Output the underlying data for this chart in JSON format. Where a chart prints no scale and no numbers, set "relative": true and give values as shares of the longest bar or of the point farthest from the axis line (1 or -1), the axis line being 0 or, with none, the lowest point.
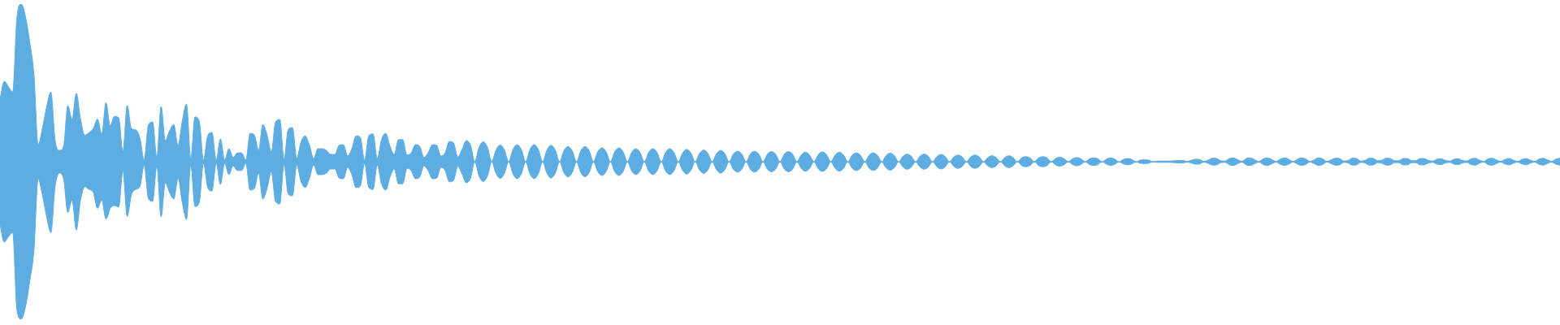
{
  "chart_data": {
    "type": "area",
    "relative": true,
    "marker": "none",
    "ref_lines": [
      {
        "axis": "y",
        "value": 0,
        "color": "#5dade2"
      }
    ],
    "categories": [
      null,
      null,
      null,
      null,
      null,
      null,
      null,
      null,
      null,
      null,
      null,
      null,
      null,
      null,
      null,
      null,
      null,
      null,
      null,
      null,
      null,
      null,
      null,
      null,
      null,
      null,
      null,
      null,
      null,
      null,
      null,
      null,
      null,
      null,
      null,
      null,
      null,
      null,
      null,
      null,
      null,
      null,
      null,
      null,
      null,
      null,
      null,
      null,
      null,
      null,
      null,
      null,
      null,
      null,
      null,
      null,
      null,
      null,
      null,
      null,
      null,
      null,
      null,
      null,
      null,
      null,
      null,
      null,
      null,
      null,
      null,
      null,
      null,
      null,
      null,
      null,
      null,
      null,
      null,
      null,
      null,
      null,
      null,
      null,
      null,
      null,
      null,
      null,
      null,
      null,
      null,
      null,
      null,
      null,
      null,
      null,
      null,
      null,
      null,
      null,
      null,
      null,
      null,
      null,
      null,
      null,
      null,
      null,
      null,
      null,
      null,
      null,
      null,
      null,
      null,
      null,
      null,
      null,
      null,
      null,
      null,
      null,
      null,
      null,
      null,
      null,
      null,
      null,
      null,
      null,
      null,
      null,
      null,
      null,
      null,
      null,
      null,
      null,
      null,
      null,
      null,
      null,
      null,
      null,
      null,
      null,
      null,
      null,
      null,
      null,
      null,
      null,
      null,
      null,
      null,
      null,
      null,
      null,
      null,
      null,
      null,
      null,
      null,
      null,
      null,
      null,
      null,
      null,
      null,
      null,
      null,
      null,
      null,
      null,
      null,
      null,
      null,
      null,
      null,
      null,
      null,
      null,
      null,
      null,
      null,
      null,
      null,
      null,
      null,
      null,
      null,
      null,
      null,
      null,
      null,
      null,
      null,
      null,
      null,
      null,
      null,
      null,
      null,
      null,
      null,
      null,
      null,
      null,
      null,
      null,
      null,
      null,
      null,
      null,
      null,
      null,
      null,
      null,
      null,
      null,
      null,
      null,
      null,
      null,
      null,
      null,
      null,
      null,
      null,
      null,
      null,
      null,
      null,
      null,
      null,
      null,
      null,
      null,
      null,
      null,
      null,
      null,
      null,
      null,
      null,
      null,
      null,
      null,
      null,
      null,
      null,
      null,
      null,
      null,
      null,
      null,
      null,
      null,
      null,
      null,
      null,
      null,
      null,
      null,
      null,
      null,
      null,
      null,
      null,
      null,
      null,
      null,
      null,
      null,
      null,
      null,
      null,
      null,
      null,
      null,
      null,
      null,
      null,
      null,
      null,
      null,
      null,
      null,
      null,
      null,
      null,
      null,
      null,
      null,
      null,
      null,
      null,
      null,
      null,
      null,
      null,
      null,
      null,
      null,
      null,
      null,
      null,
      null,
      null,
      null,
      null,
      null,
      null,
      null,
      null,
      null,
      null,
      null,
      null,
      null,
      null,
      null,
      null,
      null,
      null,
      null,
      null,
      null,
      null,
      null,
      null,
      null,
      null,
      null,
      null,
      null,
      null,
      null,
      null,
      null,
      null,
      null,
      null,
      null,
      null,
      null,
      null,
      null,
      null,
      null,
      null,
      null,
      null,
      null,
      null,
      null,
      null,
      null,
      null,
      null,
      null,
      null,
      null,
      null,
      null,
      null,
      null,
      null,
      null
    ],
    "series": [
      {
        "color": "#5dade2",
        "values": [
          0.398,
          0.51,
          0.476,
          0.442,
          0.914,
          1,
          0.922,
          0.76,
          0.554,
          0.108,
          0.21,
          0.348,
          0.442,
          0.134,
          0.072,
          0.098,
          0.356,
          0.27,
          0.434,
          0.27,
          0.168,
          0.184,
          0.21,
          0.27,
          0.176,
          0.374,
          0.228,
          0.288,
          0.278,
          0.064,
          0.356,
          0.21,
          0.202,
          0.15,
          0.012,
          0.232,
          0.252,
          0.026,
          0.35,
          0.134,
          0.196,
          0.236,
          0.104,
          0.258,
          0.366,
          0.02,
          0.284,
          0.258,
          0.01,
          0.164,
          0.186,
          0.01,
          0.144,
          0.01,
          0.082,
          0.026,
          0.056,
          0.056,
          0.01,
          0.18,
          0.17,
          0.072,
          0.236,
          0.17,
          0.062,
          0.252,
          0.268,
          0.016,
          0.206,
          0.216,
          0.02,
          0.124,
          0.164,
          0.104,
          0.02,
          0.082,
          0.082,
          0.072,
          0.046,
          0.046,
          0.104,
          0.108,
          0.036,
          0.082,
          0.164,
          0.154,
          0.01,
          0.164,
          0.176,
          0.02,
          0.14,
          0.18,
          0.098,
          0.046,
          0.14,
          0.14,
          0.042,
          0.056,
          0.108,
          0.098,
          0.026,
          0.056,
          0.108,
          0.104,
          0.036,
          0.056,
          0.128,
          0.118,
          0.03,
          0.078,
          0.134,
          0.104,
          0,
          0.09,
          0.126,
          0.09,
          0,
          0.074,
          0.106,
          0.074,
          0,
          0.076,
          0.108,
          0.076,
          0,
          0.076,
          0.108,
          0.076,
          0,
          0.072,
          0.104,
          0.072,
          0,
          0.068,
          0.096,
          0.068,
          0,
          0.068,
          0.096,
          0.068,
          0,
          0.062,
          0.088,
          0.062,
          0,
          0.062,
          0.088,
          0.062,
          0,
          0.058,
          0.082,
          0.058,
          0,
          0.058,
          0.082,
          0.058,
          0,
          0.058,
          0.082,
          0.058,
          0,
          0.054,
          0.078,
          0.054,
          0,
          0.052,
          0.074,
          0.052,
          0,
          0.05,
          0.072,
          0.05,
          0,
          0.048,
          0.066,
          0.048,
          0,
          0.048,
          0.066,
          0.048,
          0,
          0.046,
          0.064,
          0.046,
          0,
          0.046,
          0.064,
          0.046,
          0,
          0.042,
          0.06,
          0.042,
          0,
          0.044,
          0.062,
          0.044,
          0,
          0.042,
          0.06,
          0.042,
          0,
          0.04,
          0.056,
          0.04,
          0,
          0.04,
          0.056,
          0.04,
          0,
          0.038,
          0.054,
          0.038,
          0,
          0.034,
          0.048,
          0.034,
          0,
          0.034,
          0.048,
          0.034,
          0,
          0.032,
          0.046,
          0.032,
          0,
          0.03,
          0.042,
          0.03,
          0,
          0.03,
          0.042,
          0.03,
          0,
          0.026,
          0.038,
          0.026,
          0,
          0.026,
          0.038,
          0.026,
          0,
          0.024,
          0.032,
          0.024,
          0,
          0.024,
          0.032,
          0.024,
          0,
          0.02,
          0.028,
          0.02,
          0,
          0.018,
          0.026,
          0.018,
          0,
          0.018,
          0.024,
          0.018,
          0,
          0.016,
          0.024,
          0.016,
          0,
          0.014,
          0.02,
          0.014,
          0,
          0.01,
          0.012,
          0.01,
          0,
          0.004,
          0.004,
          0.004,
          0.004,
          0.006,
          0.008,
          0.008,
          0.002,
          0.008,
          0.016,
          0.014,
          0.002,
          0.01,
          0.022,
          0.02,
          0.006,
          0.004,
          0.02,
          0.024,
          0.012,
          0.002,
          0.02,
          0.024,
          0.012,
          0.002,
          0.018,
          0.024,
          0.014,
          0.002,
          0.016,
          0.024,
          0.016,
          0.002,
          0.014,
          0.024,
          0.018,
          0.002,
          0.012,
          0.024,
          0.018,
          0.002,
          0.012,
          0.022,
          0.02,
          0.004,
          0.008,
          0.022,
          0.02,
          0.004,
          0.008,
          0.022,
          0.02,
          0.006,
          0.01,
          0.022,
          0.02,
          0.006,
          0.006,
          0.02,
          0.02,
          0.006,
          0.006,
          0.02,
          0.02,
          0.008,
          0.004,
          0.016,
          0.018,
          0.008,
          0.004,
          0.016,
          0.018,
          0.008,
          0.004,
          0.018,
          0.022,
          0.01,
          0.002,
          0.018,
          0.022,
          0.012,
          0.002,
          0.014,
          0.02,
          0.01,
          0.002,
          0.014,
          0.02,
          0.01,
          0.002,
          0.016,
          0.022,
          0.012,
          0.002,
          0.016,
          0.022
        ]
      },
      {
        "color": "#5dade2",
        "values": [
          -0.4,
          -0.51,
          -0.476,
          -0.45,
          -0.94,
          -1,
          -0.922,
          -0.76,
          -0.562,
          -0.108,
          -0.21,
          -0.348,
          -0.45,
          -0.158,
          -0.072,
          -0.108,
          -0.322,
          -0.244,
          -0.434,
          -0.244,
          -0.158,
          -0.176,
          -0.194,
          -0.296,
          -0.244,
          -0.364,
          -0.296,
          -0.278,
          -0.288,
          -0.056,
          -0.348,
          -0.21,
          -0.176,
          -0.158,
          -0.022,
          -0.232,
          -0.252,
          -0.026,
          -0.35,
          -0.134,
          -0.196,
          -0.236,
          -0.104,
          -0.258,
          -0.366,
          -0.02,
          -0.284,
          -0.258,
          -0.01,
          -0.164,
          -0.186,
          -0.01,
          -0.144,
          -0.01,
          -0.082,
          -0.026,
          -0.056,
          -0.056,
          -0.01,
          -0.18,
          -0.17,
          -0.072,
          -0.236,
          -0.17,
          -0.062,
          -0.252,
          -0.268,
          -0.016,
          -0.206,
          -0.216,
          -0.02,
          -0.124,
          -0.164,
          -0.104,
          -0.02,
          -0.082,
          -0.082,
          -0.072,
          -0.046,
          -0.046,
          -0.104,
          -0.108,
          -0.036,
          -0.082,
          -0.164,
          -0.154,
          -0.01,
          -0.164,
          -0.176,
          -0.02,
          -0.14,
          -0.18,
          -0.098,
          -0.046,
          -0.14,
          -0.14,
          -0.042,
          -0.056,
          -0.108,
          -0.098,
          -0.026,
          -0.056,
          -0.108,
          -0.104,
          -0.036,
          -0.056,
          -0.128,
          -0.118,
          -0.03,
          -0.078,
          -0.134,
          -0.104,
          0,
          -0.09,
          -0.126,
          -0.09,
          0,
          -0.074,
          -0.106,
          -0.074,
          0,
          -0.076,
          -0.108,
          -0.076,
          0,
          -0.076,
          -0.108,
          -0.076,
          0,
          -0.072,
          -0.104,
          -0.072,
          0,
          -0.068,
          -0.096,
          -0.068,
          0,
          -0.068,
          -0.096,
          -0.068,
          0,
          -0.062,
          -0.088,
          -0.062,
          0,
          -0.062,
          -0.088,
          -0.062,
          0,
          -0.058,
          -0.082,
          -0.058,
          0,
          -0.058,
          -0.082,
          -0.058,
          0,
          -0.058,
          -0.082,
          -0.058,
          0,
          -0.054,
          -0.078,
          -0.054,
          0,
          -0.052,
          -0.074,
          -0.052,
          0,
          -0.05,
          -0.072,
          -0.05,
          0,
          -0.048,
          -0.066,
          -0.048,
          0,
          -0.048,
          -0.066,
          -0.048,
          0,
          -0.046,
          -0.064,
          -0.046,
          0,
          -0.046,
          -0.064,
          -0.046,
          0,
          -0.042,
          -0.06,
          -0.042,
          0,
          -0.044,
          -0.062,
          -0.044,
          0,
          -0.042,
          -0.06,
          -0.042,
          0,
          -0.04,
          -0.056,
          -0.04,
          0,
          -0.04,
          -0.056,
          -0.04,
          0,
          -0.038,
          -0.054,
          -0.038,
          0,
          -0.034,
          -0.048,
          -0.034,
          0,
          -0.034,
          -0.048,
          -0.034,
          0,
          -0.032,
          -0.046,
          -0.032,
          0,
          -0.03,
          -0.042,
          -0.03,
          0,
          -0.03,
          -0.042,
          -0.03,
          0,
          -0.026,
          -0.038,
          -0.026,
          0,
          -0.026,
          -0.038,
          -0.026,
          0,
          -0.024,
          -0.032,
          -0.024,
          0,
          -0.024,
          -0.032,
          -0.024,
          0,
          -0.02,
          -0.028,
          -0.02,
          0,
          -0.018,
          -0.026,
          -0.018,
          0,
          -0.018,
          -0.024,
          -0.018,
          0,
          -0.016,
          -0.024,
          -0.016,
          0,
          -0.014,
          -0.02,
          -0.014,
          0,
          -0.01,
          -0.012,
          -0.01,
          0,
          -0.004,
          -0.004,
          -0.004,
          -0.004,
          -0.006,
          -0.008,
          -0.008,
          -0.002,
          -0.008,
          -0.016,
          -0.014,
          -0.002,
          -0.01,
          -0.022,
          -0.02,
          -0.006,
          -0.004,
          -0.02,
          -0.024,
          -0.012,
          -0.002,
          -0.02,
          -0.024,
          -0.012,
          -0.002,
          -0.018,
          -0.024,
          -0.014,
          -0.002,
          -0.016,
          -0.024,
          -0.016,
          -0.002,
          -0.014,
          -0.024,
          -0.018,
          -0.002,
          -0.012,
          -0.024,
          -0.018,
          -0.002,
          -0.012,
          -0.022,
          -0.02,
          -0.004,
          -0.008,
          -0.022,
          -0.02,
          -0.004,
          -0.008,
          -0.022,
          -0.02,
          -0.006,
          -0.01,
          -0.022,
          -0.02,
          -0.006,
          -0.006,
          -0.02,
          -0.02,
          -0.006,
          -0.006,
          -0.02,
          -0.02,
          -0.008,
          -0.004,
          -0.016,
          -0.018,
          -0.008,
          -0.004,
          -0.016,
          -0.018,
          -0.008,
          -0.004,
          -0.018,
          -0.022,
          -0.01,
          -0.002,
          -0.018,
          -0.022,
          -0.012,
          -0.002,
          -0.014,
          -0.02,
          -0.01,
          -0.002,
          -0.014,
          -0.02,
          -0.01,
          -0.002,
          -0.016,
          -0.022,
          -0.012,
          -0.002,
          -0.016,
          -0.022
        ]
      }
    ]
  }
}
